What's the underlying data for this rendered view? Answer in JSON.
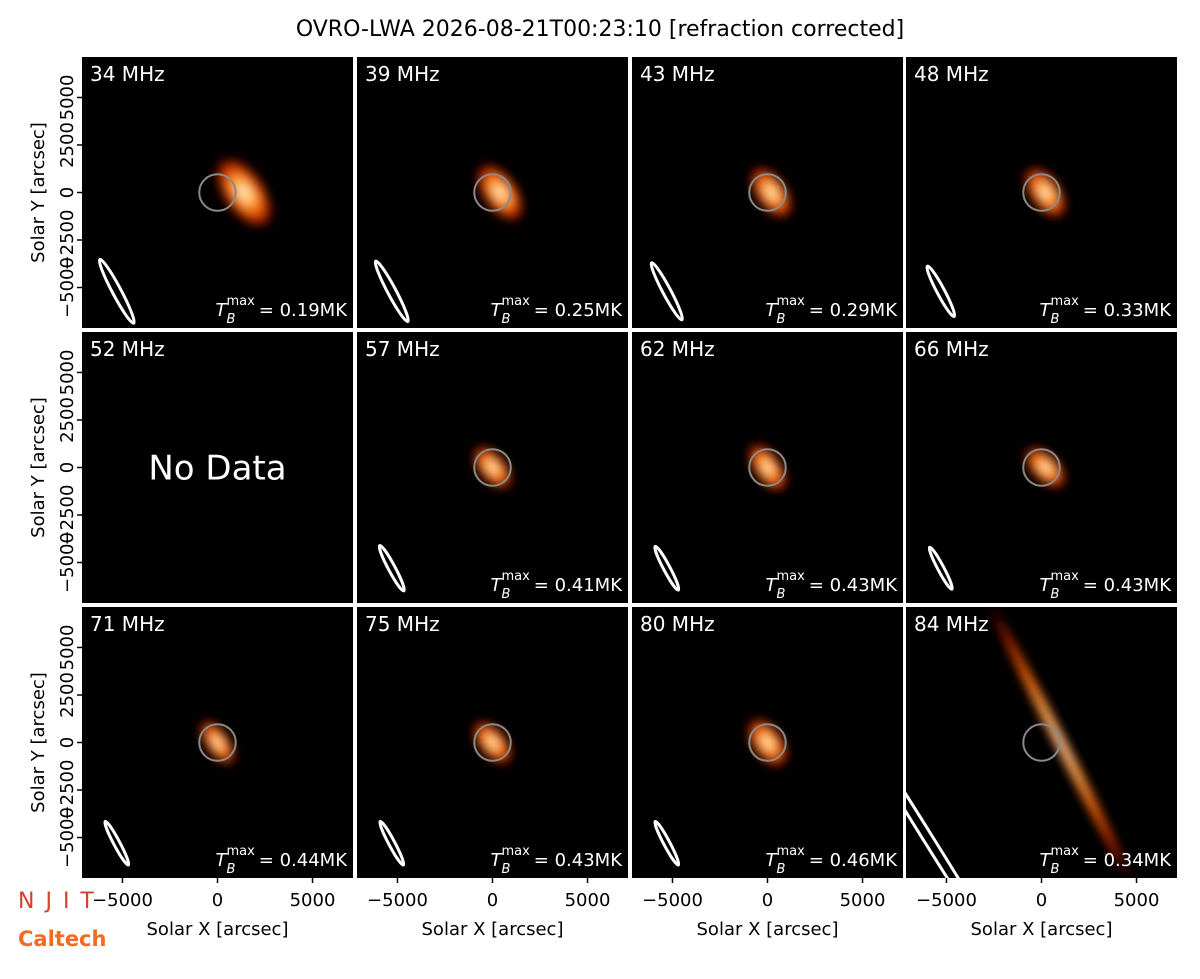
{
  "chart_data": {
    "type": "image-grid",
    "title": "OVRO-LWA 2026-08-21T00:23:10 [refraction corrected]",
    "xlabel": "Solar X [arcsec]",
    "ylabel": "Solar Y [arcsec]",
    "xlim": [
      -7130,
      7130
    ],
    "ylim": [
      -7130,
      7130
    ],
    "xticks": [
      {
        "value": -5000,
        "label": "−5000"
      },
      0,
      5000
    ],
    "yticks": [
      {
        "value": -5000,
        "label": "−5000"
      },
      {
        "value": -2500,
        "label": "−2500"
      },
      0,
      2500,
      5000
    ],
    "sun_radius": 960,
    "tb_symbol": "T",
    "tb_sub": "B",
    "tb_sup": "max",
    "logos": [
      "NJIT",
      "Caltech"
    ],
    "panels": [
      {
        "freq": "34 MHz",
        "tb_max": "= 0.19MK",
        "source": {
          "x": 1400,
          "y": 0,
          "major": 2300,
          "minor": 1200,
          "angle": 55
        },
        "beam": {
          "x": -5300,
          "y": -5200,
          "major": 1900,
          "minor": 230,
          "angle": 62
        }
      },
      {
        "freq": "39 MHz",
        "tb_max": "= 0.25MK",
        "source": {
          "x": 400,
          "y": 0,
          "major": 1900,
          "minor": 1000,
          "angle": 55
        },
        "beam": {
          "x": -5300,
          "y": -5200,
          "major": 1800,
          "minor": 220,
          "angle": 62
        }
      },
      {
        "freq": "43 MHz",
        "tb_max": "= 0.29MK",
        "source": {
          "x": 200,
          "y": 0,
          "major": 1700,
          "minor": 900,
          "angle": 55
        },
        "beam": {
          "x": -5300,
          "y": -5200,
          "major": 1700,
          "minor": 210,
          "angle": 62
        }
      },
      {
        "freq": "48 MHz",
        "tb_max": "= 0.33MK",
        "source": {
          "x": 200,
          "y": 0,
          "major": 1700,
          "minor": 900,
          "angle": 55
        },
        "beam": {
          "x": -5300,
          "y": -5200,
          "major": 1500,
          "minor": 200,
          "angle": 62
        }
      },
      {
        "freq": "52 MHz",
        "note": "No Data"
      },
      {
        "freq": "57 MHz",
        "tb_max": "= 0.41MK",
        "source": {
          "x": 0,
          "y": 0,
          "major": 1500,
          "minor": 800,
          "angle": 50
        },
        "beam": {
          "x": -5300,
          "y": -5300,
          "major": 1350,
          "minor": 180,
          "angle": 62
        }
      },
      {
        "freq": "62 MHz",
        "tb_max": "= 0.43MK",
        "source": {
          "x": 0,
          "y": 0,
          "major": 1600,
          "minor": 800,
          "angle": 55
        },
        "beam": {
          "x": -5300,
          "y": -5300,
          "major": 1300,
          "minor": 170,
          "angle": 62
        }
      },
      {
        "freq": "66 MHz",
        "tb_max": "= 0.43MK",
        "source": {
          "x": 200,
          "y": 0,
          "major": 1500,
          "minor": 800,
          "angle": 45
        },
        "beam": {
          "x": -5300,
          "y": -5300,
          "major": 1250,
          "minor": 160,
          "angle": 62
        }
      },
      {
        "freq": "71 MHz",
        "tb_max": "= 0.44MK",
        "source": {
          "x": 0,
          "y": 0,
          "major": 1500,
          "minor": 700,
          "angle": 55
        },
        "beam": {
          "x": -5300,
          "y": -5300,
          "major": 1300,
          "minor": 160,
          "angle": 62
        }
      },
      {
        "freq": "75 MHz",
        "tb_max": "= 0.43MK",
        "source": {
          "x": 0,
          "y": 0,
          "major": 1500,
          "minor": 800,
          "angle": 50
        },
        "beam": {
          "x": -5300,
          "y": -5300,
          "major": 1300,
          "minor": 160,
          "angle": 62
        }
      },
      {
        "freq": "80 MHz",
        "tb_max": "= 0.46MK",
        "source": {
          "x": 0,
          "y": 0,
          "major": 1600,
          "minor": 900,
          "angle": 55
        },
        "beam": {
          "x": -5300,
          "y": -5300,
          "major": 1300,
          "minor": 160,
          "angle": 62
        }
      },
      {
        "freq": "84 MHz",
        "tb_max": "= 0.34MK",
        "source": {
          "x": 1000,
          "y": 0,
          "major": 9000,
          "minor": 380,
          "angle": 63
        },
        "beam": {
          "x": -6000,
          "y": -5000,
          "major": 9000,
          "minor": 250,
          "angle": 58
        }
      }
    ]
  }
}
